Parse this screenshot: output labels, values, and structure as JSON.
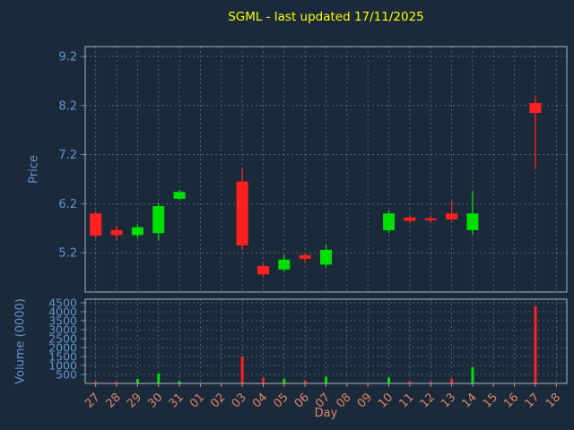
{
  "title": "SGML - last updated 17/11/2025",
  "colors": {
    "background": "#1b2a3a",
    "title": "#ffff00",
    "price_axis": "#6495cd",
    "day_axis": "#e08467",
    "grid": "#607080",
    "spine": "#a8b4c0",
    "up": "#00e000",
    "down": "#ff2020"
  },
  "chart_data": {
    "type": "candlestick_with_volume",
    "title": "SGML - last updated 17/11/2025",
    "xlabel": "Day",
    "price_ylabel": "Price",
    "volume_ylabel": "Volume (0000)",
    "x_ticklabels": [
      "27",
      "28",
      "29",
      "30",
      "31",
      "01",
      "02",
      "03",
      "04",
      "05",
      "06",
      "07",
      "08",
      "09",
      "10",
      "11",
      "12",
      "13",
      "14",
      "15",
      "16",
      "17",
      "18"
    ],
    "price_yticks": [
      5.2,
      6.2,
      7.2,
      8.2,
      9.2
    ],
    "price_ylim": [
      4.4,
      9.4
    ],
    "volume_yticks": [
      500,
      1000,
      1500,
      2000,
      2500,
      3000,
      3500,
      4000,
      4500
    ],
    "volume_ylim": [
      0,
      4700
    ],
    "grid": true,
    "candles": [
      {
        "day": "27",
        "open": 6.0,
        "high": 6.05,
        "low": 5.5,
        "close": 5.55,
        "volume": 100
      },
      {
        "day": "28",
        "open": 5.66,
        "high": 5.76,
        "low": 5.46,
        "close": 5.56,
        "volume": 80
      },
      {
        "day": "29",
        "open": 5.56,
        "high": 5.78,
        "low": 5.5,
        "close": 5.72,
        "volume": 250
      },
      {
        "day": "30",
        "open": 5.6,
        "high": 6.22,
        "low": 5.45,
        "close": 6.15,
        "volume": 550
      },
      {
        "day": "31",
        "open": 6.3,
        "high": 6.48,
        "low": 6.27,
        "close": 6.44,
        "volume": 120
      },
      {
        "day": "01",
        "open": null,
        "high": null,
        "low": null,
        "close": null,
        "volume": 0
      },
      {
        "day": "02",
        "open": null,
        "high": null,
        "low": null,
        "close": null,
        "volume": 0
      },
      {
        "day": "03",
        "open": 6.65,
        "high": 6.92,
        "low": 5.25,
        "close": 5.35,
        "volume": 1500
      },
      {
        "day": "04",
        "open": 4.93,
        "high": 4.98,
        "low": 4.7,
        "close": 4.76,
        "volume": 300
      },
      {
        "day": "05",
        "open": 4.86,
        "high": 5.16,
        "low": 4.83,
        "close": 5.06,
        "volume": 260
      },
      {
        "day": "06",
        "open": 5.15,
        "high": 5.18,
        "low": 5.0,
        "close": 5.08,
        "volume": 150
      },
      {
        "day": "07",
        "open": 4.96,
        "high": 5.36,
        "low": 4.9,
        "close": 5.26,
        "volume": 380
      },
      {
        "day": "08",
        "open": null,
        "high": null,
        "low": null,
        "close": null,
        "volume": 0
      },
      {
        "day": "09",
        "open": null,
        "high": null,
        "low": null,
        "close": null,
        "volume": 0
      },
      {
        "day": "10",
        "open": 5.66,
        "high": 6.06,
        "low": 5.6,
        "close": 6.0,
        "volume": 320
      },
      {
        "day": "11",
        "open": 5.92,
        "high": 5.97,
        "low": 5.8,
        "close": 5.85,
        "volume": 110
      },
      {
        "day": "12",
        "open": 5.9,
        "high": 5.96,
        "low": 5.82,
        "close": 5.86,
        "volume": 90
      },
      {
        "day": "13",
        "open": 6.0,
        "high": 6.26,
        "low": 5.84,
        "close": 5.88,
        "volume": 260
      },
      {
        "day": "14",
        "open": 5.66,
        "high": 6.46,
        "low": 5.58,
        "close": 6.0,
        "volume": 900
      },
      {
        "day": "15",
        "open": null,
        "high": null,
        "low": null,
        "close": null,
        "volume": 0
      },
      {
        "day": "16",
        "open": null,
        "high": null,
        "low": null,
        "close": null,
        "volume": 0
      },
      {
        "day": "17",
        "open": 8.25,
        "high": 8.4,
        "low": 6.9,
        "close": 8.05,
        "volume": 4300
      },
      {
        "day": "18",
        "open": null,
        "high": null,
        "low": null,
        "close": null,
        "volume": 0
      }
    ]
  }
}
